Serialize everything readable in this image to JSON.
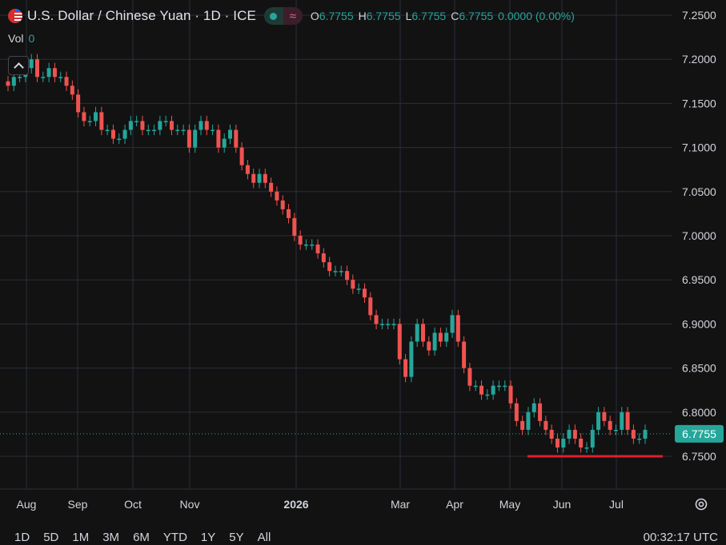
{
  "header": {
    "title": "U.S. Dollar / Chinese Yuan · 1D · ICE",
    "ohlc": [
      {
        "k": "O",
        "v": "6.7755"
      },
      {
        "k": "H",
        "v": "6.7755"
      },
      {
        "k": "L",
        "v": "6.7755"
      },
      {
        "k": "C",
        "v": "6.7755"
      }
    ],
    "change": "0.0000 (0.00%)",
    "vol_label": "Vol",
    "vol_value": "0"
  },
  "ranges": [
    "1D",
    "5D",
    "1M",
    "3M",
    "6M",
    "YTD",
    "1Y",
    "5Y",
    "All"
  ],
  "clock": "00:32:17 UTC",
  "colors": {
    "up": "#26a69a",
    "down": "#ef5350",
    "background": "#121212",
    "grid": "#2a2e39",
    "horizontal_line": "#e01f2a"
  },
  "icons": {
    "flag": "us-cn-flag-icon",
    "status": "market-status-dot-icon",
    "wave": "approx-wave-icon",
    "settings": "gear-icon",
    "collapse": "chevron-up-icon"
  },
  "chart_data": {
    "type": "candlestick",
    "ylim": [
      6.73,
      7.23
    ],
    "y_ticks": [
      "7.2500",
      "7.2000",
      "7.1500",
      "7.1000",
      "7.0500",
      "7.0000",
      "6.9500",
      "6.9000",
      "6.8500",
      "6.8000",
      "6.7500"
    ],
    "x_ticks": [
      "Aug",
      "Sep",
      "Oct",
      "Nov",
      "2026",
      "Mar",
      "Apr",
      "May",
      "Jun",
      "Jul"
    ],
    "last_price": "6.7755",
    "horizontal_line": {
      "price": 6.75,
      "from": "May",
      "to": "Jul"
    },
    "closes": [
      7.17,
      7.18,
      7.18,
      7.19,
      7.2,
      7.18,
      7.18,
      7.19,
      7.18,
      7.18,
      7.17,
      7.16,
      7.14,
      7.13,
      7.13,
      7.14,
      7.12,
      7.12,
      7.11,
      7.11,
      7.12,
      7.13,
      7.13,
      7.12,
      7.12,
      7.12,
      7.13,
      7.13,
      7.12,
      7.12,
      7.12,
      7.1,
      7.12,
      7.13,
      7.12,
      7.12,
      7.1,
      7.11,
      7.12,
      7.1,
      7.08,
      7.07,
      7.06,
      7.07,
      7.06,
      7.05,
      7.04,
      7.03,
      7.02,
      7.0,
      6.99,
      6.99,
      6.99,
      6.98,
      6.97,
      6.96,
      6.96,
      6.96,
      6.95,
      6.94,
      6.94,
      6.93,
      6.91,
      6.9,
      6.9,
      6.9,
      6.9,
      6.86,
      6.84,
      6.88,
      6.9,
      6.88,
      6.87,
      6.89,
      6.88,
      6.89,
      6.91,
      6.88,
      6.85,
      6.83,
      6.83,
      6.82,
      6.82,
      6.83,
      6.83,
      6.83,
      6.81,
      6.79,
      6.78,
      6.8,
      6.81,
      6.79,
      6.78,
      6.77,
      6.76,
      6.77,
      6.78,
      6.77,
      6.76,
      6.76,
      6.78,
      6.8,
      6.79,
      6.78,
      6.78,
      6.8,
      6.78,
      6.77,
      6.77,
      6.78
    ]
  }
}
